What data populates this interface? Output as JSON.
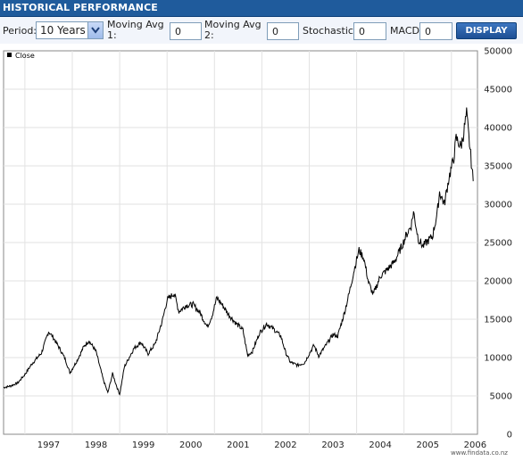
{
  "header": {
    "title": "HISTORICAL PERFORMANCE"
  },
  "controls": {
    "period_label": "Period:",
    "period_value": "10 Years",
    "ma1_label_line1": "Moving Avg",
    "ma1_label_line2": "1:",
    "ma1_value": "0",
    "ma2_label_line1": "Moving Avg",
    "ma2_label_line2": "2:",
    "ma2_value": "0",
    "stochastic_label": "Stochastic:",
    "stochastic_value": "0",
    "macd_label": "MACD",
    "macd_value": "0",
    "display_label": "DISPLAY"
  },
  "footer": {
    "watermark": "www.findata.co.nz"
  },
  "chart_data": {
    "type": "line",
    "legend": "Close",
    "legend_position": "top-left",
    "grid": true,
    "x_ticks": [
      "1997",
      "1998",
      "1999",
      "2000",
      "2001",
      "2002",
      "2003",
      "2004",
      "2005",
      "2006"
    ],
    "xlim": [
      1996.55,
      2006.55
    ],
    "y_ticks": [
      0,
      5000,
      10000,
      15000,
      20000,
      25000,
      30000,
      35000,
      40000,
      45000,
      50000
    ],
    "ylim": [
      0,
      50000
    ],
    "series": [
      {
        "name": "Close",
        "color": "#000000",
        "points": [
          [
            1996.55,
            6100
          ],
          [
            1996.7,
            6300
          ],
          [
            1996.85,
            6700
          ],
          [
            1997.0,
            7800
          ],
          [
            1997.15,
            9200
          ],
          [
            1997.35,
            10600
          ],
          [
            1997.5,
            13400
          ],
          [
            1997.6,
            12600
          ],
          [
            1997.75,
            11000
          ],
          [
            1997.85,
            9800
          ],
          [
            1997.95,
            8000
          ],
          [
            1998.1,
            9600
          ],
          [
            1998.25,
            11500
          ],
          [
            1998.35,
            12200
          ],
          [
            1998.5,
            10800
          ],
          [
            1998.65,
            7200
          ],
          [
            1998.75,
            5400
          ],
          [
            1998.85,
            7900
          ],
          [
            1998.95,
            6000
          ],
          [
            1999.0,
            5200
          ],
          [
            1999.1,
            8800
          ],
          [
            1999.3,
            11200
          ],
          [
            1999.45,
            12000
          ],
          [
            1999.6,
            10500
          ],
          [
            1999.75,
            11800
          ],
          [
            1999.9,
            14800
          ],
          [
            2000.0,
            17500
          ],
          [
            2000.15,
            18400
          ],
          [
            2000.25,
            16000
          ],
          [
            2000.4,
            16800
          ],
          [
            2000.55,
            16900
          ],
          [
            2000.7,
            15800
          ],
          [
            2000.85,
            14000
          ],
          [
            2000.95,
            15500
          ],
          [
            2001.05,
            17800
          ],
          [
            2001.15,
            17000
          ],
          [
            2001.3,
            15600
          ],
          [
            2001.45,
            14500
          ],
          [
            2001.6,
            13600
          ],
          [
            2001.7,
            10300
          ],
          [
            2001.8,
            10800
          ],
          [
            2001.95,
            13200
          ],
          [
            2002.1,
            14400
          ],
          [
            2002.25,
            13700
          ],
          [
            2002.4,
            12800
          ],
          [
            2002.5,
            10700
          ],
          [
            2002.6,
            9400
          ],
          [
            2002.75,
            9000
          ],
          [
            2002.9,
            9300
          ],
          [
            2003.0,
            10500
          ],
          [
            2003.1,
            11600
          ],
          [
            2003.2,
            10200
          ],
          [
            2003.35,
            11600
          ],
          [
            2003.5,
            13000
          ],
          [
            2003.6,
            12800
          ],
          [
            2003.75,
            16000
          ],
          [
            2003.85,
            18600
          ],
          [
            2003.95,
            21500
          ],
          [
            2004.05,
            24000
          ],
          [
            2004.15,
            23000
          ],
          [
            2004.25,
            19800
          ],
          [
            2004.35,
            18200
          ],
          [
            2004.5,
            20600
          ],
          [
            2004.65,
            21500
          ],
          [
            2004.8,
            22500
          ],
          [
            2004.95,
            24500
          ],
          [
            2005.05,
            26000
          ],
          [
            2005.15,
            27200
          ],
          [
            2005.2,
            29000
          ],
          [
            2005.3,
            25500
          ],
          [
            2005.4,
            24500
          ],
          [
            2005.5,
            25200
          ],
          [
            2005.6,
            25800
          ],
          [
            2005.7,
            28800
          ],
          [
            2005.75,
            31600
          ],
          [
            2005.85,
            30000
          ],
          [
            2005.95,
            33500
          ],
          [
            2006.05,
            36000
          ],
          [
            2006.1,
            38600
          ],
          [
            2006.2,
            37500
          ],
          [
            2006.25,
            39000
          ],
          [
            2006.32,
            41800
          ],
          [
            2006.38,
            38000
          ],
          [
            2006.42,
            35500
          ],
          [
            2006.46,
            33000
          ]
        ]
      }
    ]
  }
}
